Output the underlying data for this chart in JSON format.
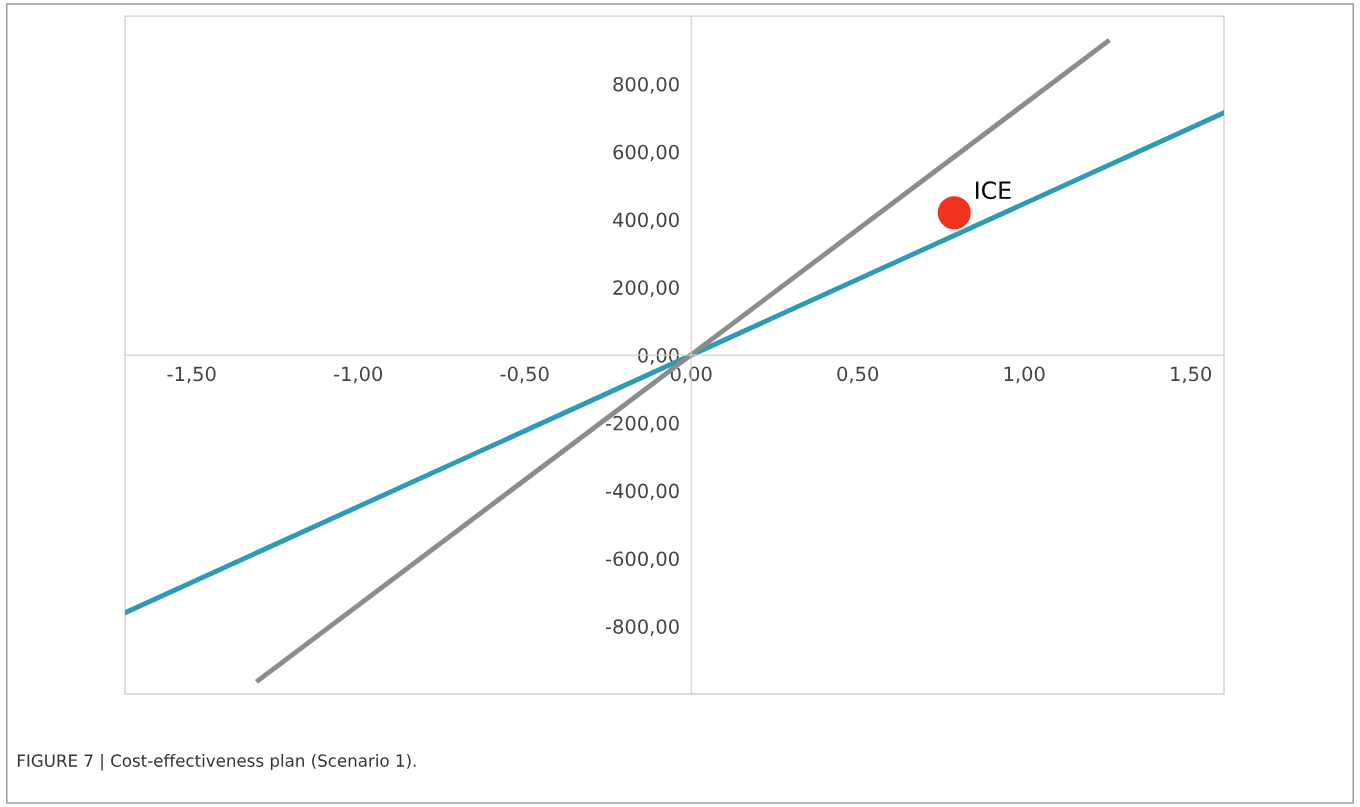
{
  "chart_data": {
    "type": "line",
    "xlim": [
      -1.7,
      1.6
    ],
    "ylim": [
      -1000,
      1000
    ],
    "xticks": [
      {
        "value": -1.5,
        "label": "-1,50"
      },
      {
        "value": -1.0,
        "label": "-1,00"
      },
      {
        "value": -0.5,
        "label": "-0,50"
      },
      {
        "value": 0,
        "label": "0,00"
      },
      {
        "value": 0.5,
        "label": "0,50"
      },
      {
        "value": 1.0,
        "label": "1,00"
      },
      {
        "value": 1.5,
        "label": "1,50"
      }
    ],
    "yticks": [
      {
        "value": -800,
        "label": "-800,00"
      },
      {
        "value": -600,
        "label": "-600,00"
      },
      {
        "value": -400,
        "label": "-400,00"
      },
      {
        "value": -200,
        "label": "-200,00"
      },
      {
        "value": 0,
        "label": "0,00"
      },
      {
        "value": 200,
        "label": "200,00"
      },
      {
        "value": 400,
        "label": "400,00"
      },
      {
        "value": 600,
        "label": "600,00"
      },
      {
        "value": 800,
        "label": "800,00"
      }
    ],
    "grid": false,
    "legend": false,
    "series": [
      {
        "color": "#2e9ab4",
        "x": [
          -1.7,
          1.6
        ],
        "values": [
          -760,
          715
        ]
      },
      {
        "color": "#8c8c8c",
        "x": [
          -1.3,
          1.25
        ],
        "values": [
          -960,
          925
        ]
      },
      {
        "type": "scatter",
        "name": "ICE",
        "color": "#f0321e",
        "x": [
          0.79
        ],
        "values": [
          420
        ],
        "marker": "circle"
      }
    ],
    "annotations": [
      "FIGURE 7 | Cost-effectiveness plan (Scenario 1)."
    ]
  }
}
